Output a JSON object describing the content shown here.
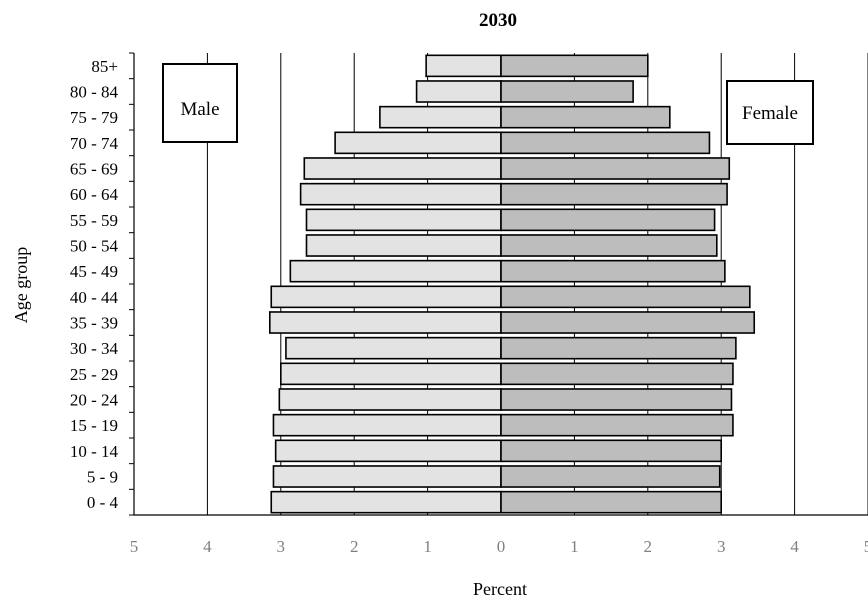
{
  "chart_data": {
    "type": "bar",
    "title": "2030",
    "xlabel": "Percent",
    "ylabel": "Age group",
    "xlim": [
      -5,
      5
    ],
    "x_tick_labels": [
      "5",
      "4",
      "3",
      "2",
      "1",
      "0",
      "1",
      "2",
      "3",
      "4",
      "5"
    ],
    "grid": "vertical",
    "categories": [
      "0 - 4",
      "5 - 9",
      "10 - 14",
      "15 - 19",
      "20 - 24",
      "25 - 29",
      "30 - 34",
      "35 - 39",
      "40 - 44",
      "45 - 49",
      "50 - 54",
      "55 - 59",
      "60 - 64",
      "65 - 69",
      "70 - 74",
      "75 - 79",
      "80 - 84",
      "85+"
    ],
    "series": [
      {
        "name": "Male",
        "color": "#e3e3e3",
        "values": [
          3.13,
          3.1,
          3.07,
          3.1,
          3.02,
          3.0,
          2.93,
          3.15,
          3.13,
          2.87,
          2.65,
          2.65,
          2.73,
          2.68,
          2.26,
          1.65,
          1.15,
          1.02
        ]
      },
      {
        "name": "Female",
        "color": "#bdbdbd",
        "values": [
          3.0,
          2.98,
          3.0,
          3.16,
          3.14,
          3.16,
          3.2,
          3.45,
          3.39,
          3.05,
          2.94,
          2.91,
          3.08,
          3.11,
          2.84,
          2.3,
          1.8,
          2.0
        ]
      }
    ],
    "legend": [
      {
        "label": "Male",
        "placement": "top-left"
      },
      {
        "label": "Female",
        "placement": "top-right"
      }
    ]
  }
}
